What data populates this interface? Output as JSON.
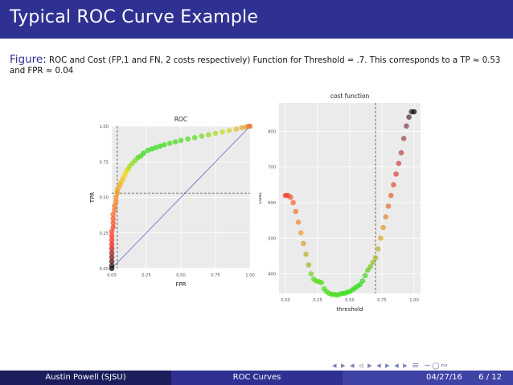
{
  "slide": {
    "title": "Typical ROC Curve Example",
    "caption_label": "Figure:",
    "caption_text": "ROC and Cost (FP,1 and FN, 2 costs respectively) Function for Threshold = .7. This corresponds to a TP ≈ 0.53 and FPR ≈ 0.04",
    "nav_symbols": "◂ ▸ ◂ ◃ ▸ ◂ ▸ ◂ ▸ ≡ ∽○∾"
  },
  "footer": {
    "author": "Austin Powell (SJSU)",
    "topic": "ROC Curves",
    "date": "04/27/16",
    "page": "6 / 12"
  },
  "colors": {
    "title_bar": "#2e3192",
    "panel_bg": "#ebebeb",
    "grid": "#ffffff",
    "diagonal": "#6666cc"
  },
  "chart_data": [
    {
      "type": "scatter",
      "title": "ROC",
      "xlabel": "FPR",
      "ylabel": "TPR",
      "xlim": [
        0,
        1
      ],
      "ylim": [
        0,
        1
      ],
      "xticks": [
        "0.00",
        "0.25",
        "0.50",
        "0.75",
        "1.00"
      ],
      "yticks": [
        "0.00",
        "0.25",
        "0.50",
        "0.75",
        "1.00"
      ],
      "grid": true,
      "reference_line": {
        "from": [
          0,
          0
        ],
        "to": [
          1,
          1
        ]
      },
      "threshold_marker": {
        "fpr": 0.04,
        "tpr": 0.53
      },
      "x": [
        0.0,
        0.0,
        0.0,
        0.0,
        0.0,
        0.0,
        0.0,
        0.0,
        0.0,
        0.0,
        0.01,
        0.01,
        0.01,
        0.01,
        0.02,
        0.02,
        0.03,
        0.03,
        0.04,
        0.04,
        0.05,
        0.06,
        0.07,
        0.08,
        0.09,
        0.1,
        0.11,
        0.12,
        0.13,
        0.15,
        0.17,
        0.19,
        0.21,
        0.23,
        0.26,
        0.29,
        0.32,
        0.35,
        0.38,
        0.42,
        0.46,
        0.5,
        0.55,
        0.6,
        0.65,
        0.7,
        0.75,
        0.8,
        0.85,
        0.9,
        0.94,
        0.97,
        0.99,
        1.0
      ],
      "y": [
        0.0,
        0.02,
        0.05,
        0.08,
        0.11,
        0.14,
        0.17,
        0.2,
        0.23,
        0.26,
        0.29,
        0.32,
        0.35,
        0.38,
        0.41,
        0.44,
        0.47,
        0.5,
        0.53,
        0.55,
        0.57,
        0.59,
        0.61,
        0.63,
        0.65,
        0.67,
        0.69,
        0.7,
        0.72,
        0.74,
        0.76,
        0.78,
        0.79,
        0.81,
        0.83,
        0.84,
        0.85,
        0.86,
        0.87,
        0.88,
        0.89,
        0.9,
        0.91,
        0.92,
        0.93,
        0.94,
        0.95,
        0.96,
        0.97,
        0.98,
        0.99,
        0.995,
        1.0,
        1.0
      ]
    },
    {
      "type": "scatter",
      "title": "cost function",
      "xlabel": "threshold",
      "ylabel": "cost",
      "xlim": [
        -0.05,
        1.05
      ],
      "ylim": [
        345,
        880
      ],
      "xticks": [
        "0.00",
        "0.25",
        "0.50",
        "0.75",
        "1.00"
      ],
      "yticks": [
        "400",
        "500",
        "600",
        "700",
        "800"
      ],
      "grid": true,
      "threshold_marker": {
        "threshold": 0.7
      },
      "x": [
        0.0,
        0.02,
        0.04,
        0.06,
        0.08,
        0.1,
        0.12,
        0.14,
        0.16,
        0.18,
        0.2,
        0.22,
        0.24,
        0.26,
        0.28,
        0.3,
        0.32,
        0.34,
        0.36,
        0.38,
        0.4,
        0.42,
        0.44,
        0.46,
        0.48,
        0.5,
        0.52,
        0.54,
        0.56,
        0.58,
        0.6,
        0.62,
        0.64,
        0.66,
        0.68,
        0.7,
        0.72,
        0.74,
        0.76,
        0.78,
        0.8,
        0.82,
        0.84,
        0.86,
        0.88,
        0.9,
        0.92,
        0.94,
        0.96,
        0.98,
        1.0
      ],
      "y": [
        620,
        620,
        615,
        600,
        575,
        545,
        515,
        485,
        455,
        425,
        400,
        385,
        380,
        378,
        375,
        358,
        350,
        345,
        342,
        342,
        340,
        342,
        345,
        345,
        348,
        350,
        355,
        360,
        365,
        370,
        380,
        395,
        410,
        420,
        432,
        445,
        470,
        500,
        530,
        560,
        590,
        620,
        650,
        680,
        710,
        740,
        780,
        815,
        840,
        855,
        855
      ]
    }
  ]
}
